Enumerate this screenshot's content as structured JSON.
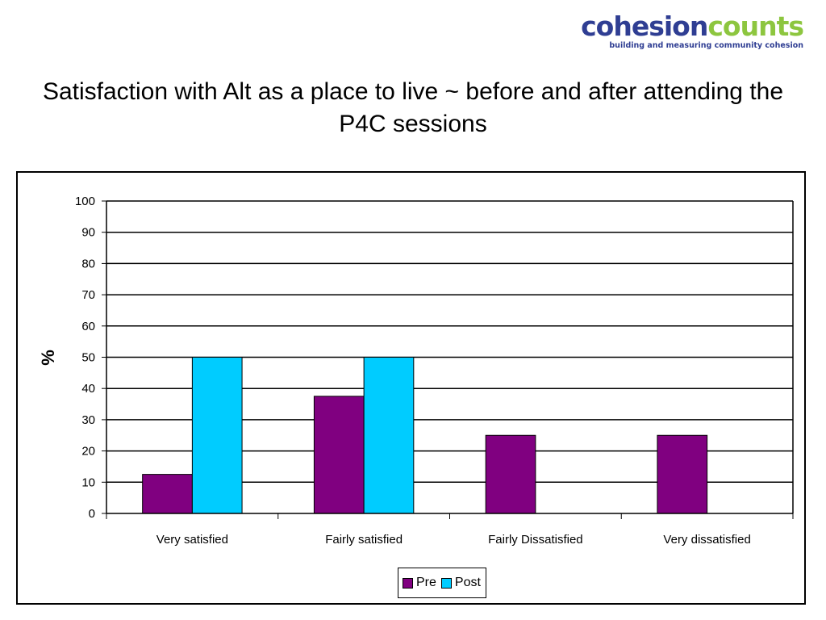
{
  "logo": {
    "part1": "cohesion",
    "part2": "counts",
    "tagline": "building and measuring community cohesion"
  },
  "title": "Satisfaction with Alt as a place to live ~ before and after attending the P4C sessions",
  "colors": {
    "pre": "#800080",
    "post": "#00ccff",
    "logo_blue": "#2f3e93",
    "logo_green": "#8dc63f"
  },
  "chart_data": {
    "type": "bar",
    "title": "Satisfaction with Alt as a place to live ~ before and after attending the P4C sessions",
    "xlabel": "",
    "ylabel": "%",
    "ylim": [
      0,
      100
    ],
    "yticks": [
      0,
      10,
      20,
      30,
      40,
      50,
      60,
      70,
      80,
      90,
      100
    ],
    "categories": [
      "Very satisfied",
      "Fairly satisfied",
      "Fairly Dissatisfied",
      "Very dissatisfied"
    ],
    "series": [
      {
        "name": "Pre",
        "values": [
          12.5,
          37.5,
          25,
          25
        ]
      },
      {
        "name": "Post",
        "values": [
          50,
          50,
          0,
          0
        ]
      }
    ],
    "grid": true,
    "legend": "bottom"
  }
}
